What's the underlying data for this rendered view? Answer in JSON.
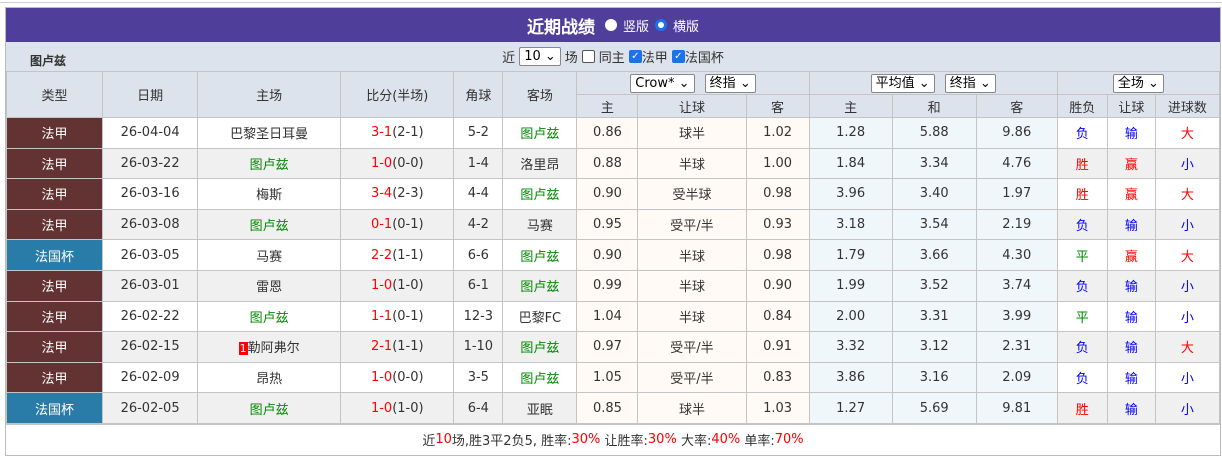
{
  "title": "近期战绩",
  "layout_options": [
    {
      "label": "竖版",
      "selected": false
    },
    {
      "label": "横版",
      "selected": true
    }
  ],
  "team": "图卢兹",
  "filter": {
    "prefix": "近",
    "count": "10",
    "suffix": "场",
    "checkboxes": [
      {
        "label": "同主",
        "checked": false
      },
      {
        "label": "法甲",
        "checked": true
      },
      {
        "label": "法国杯",
        "checked": true
      }
    ]
  },
  "headers": {
    "type": "类型",
    "date": "日期",
    "home": "主场",
    "score": "比分(半场)",
    "corner": "角球",
    "away": "客场",
    "company_select": "Crow*",
    "odds_select": "终指",
    "avg_select": "平均值",
    "avg_odds_select": "终指",
    "period_select": "全场",
    "sub": [
      "主",
      "让球",
      "客",
      "主",
      "和",
      "客",
      "胜负",
      "让球",
      "进球数"
    ]
  },
  "colors": {
    "league_fr": "#633333",
    "cup_fr": "#2a7ca8",
    "focus_team": "#008800",
    "header_bar": "#4f3f9a"
  },
  "rows": [
    {
      "type": "法甲",
      "date": "26-04-04",
      "home": "巴黎圣日耳曼",
      "score": "3-1",
      "half": "(2-1)",
      "corner": "5-2",
      "away": "图卢兹",
      "h": "0.86",
      "hc": "球半",
      "a": "1.02",
      "ah": "1.28",
      "ad": "5.88",
      "aa": "9.86",
      "wl": "负",
      "hr": "输",
      "ou": "大"
    },
    {
      "type": "法甲",
      "date": "26-03-22",
      "home": "图卢兹",
      "score": "1-0",
      "half": "(0-0)",
      "corner": "1-4",
      "away": "洛里昂",
      "h": "0.88",
      "hc": "半球",
      "a": "1.00",
      "ah": "1.84",
      "ad": "3.34",
      "aa": "4.76",
      "wl": "胜",
      "hr": "赢",
      "ou": "小"
    },
    {
      "type": "法甲",
      "date": "26-03-16",
      "home": "梅斯",
      "score": "3-4",
      "half": "(2-3)",
      "corner": "4-4",
      "away": "图卢兹",
      "h": "0.90",
      "hc": "受半球",
      "a": "0.98",
      "ah": "3.96",
      "ad": "3.40",
      "aa": "1.97",
      "wl": "胜",
      "hr": "赢",
      "ou": "大"
    },
    {
      "type": "法甲",
      "date": "26-03-08",
      "home": "图卢兹",
      "score": "0-1",
      "half": "(0-1)",
      "corner": "4-2",
      "away": "马赛",
      "h": "0.95",
      "hc": "受平/半",
      "a": "0.93",
      "ah": "3.18",
      "ad": "3.54",
      "aa": "2.19",
      "wl": "负",
      "hr": "输",
      "ou": "小"
    },
    {
      "type": "法国杯",
      "date": "26-03-05",
      "home": "马赛",
      "score": "2-2",
      "half": "(1-1)",
      "corner": "6-6",
      "away": "图卢兹",
      "h": "0.90",
      "hc": "半球",
      "a": "0.98",
      "ah": "1.79",
      "ad": "3.66",
      "aa": "4.30",
      "wl": "平",
      "hr": "赢",
      "ou": "大"
    },
    {
      "type": "法甲",
      "date": "26-03-01",
      "home": "雷恩",
      "score": "1-0",
      "half": "(1-0)",
      "corner": "6-1",
      "away": "图卢兹",
      "h": "0.99",
      "hc": "半球",
      "a": "0.90",
      "ah": "1.99",
      "ad": "3.52",
      "aa": "3.74",
      "wl": "负",
      "hr": "输",
      "ou": "小"
    },
    {
      "type": "法甲",
      "date": "26-02-22",
      "home": "图卢兹",
      "score": "1-1",
      "half": "(0-1)",
      "corner": "12-3",
      "away": "巴黎FC",
      "h": "1.04",
      "hc": "半球",
      "a": "0.84",
      "ah": "2.00",
      "ad": "3.31",
      "aa": "3.99",
      "wl": "平",
      "hr": "输",
      "ou": "小"
    },
    {
      "type": "法甲",
      "date": "26-02-15",
      "rank": "1",
      "home": "勒阿弗尔",
      "score": "2-1",
      "half": "(1-1)",
      "corner": "1-10",
      "away": "图卢兹",
      "h": "0.97",
      "hc": "受平/半",
      "a": "0.91",
      "ah": "3.32",
      "ad": "3.12",
      "aa": "2.31",
      "wl": "负",
      "hr": "输",
      "ou": "大"
    },
    {
      "type": "法甲",
      "date": "26-02-09",
      "home": "昂热",
      "score": "1-0",
      "half": "(0-0)",
      "corner": "3-5",
      "away": "图卢兹",
      "h": "1.05",
      "hc": "受平/半",
      "a": "0.83",
      "ah": "3.86",
      "ad": "3.16",
      "aa": "2.09",
      "wl": "负",
      "hr": "输",
      "ou": "小"
    },
    {
      "type": "法国杯",
      "date": "26-02-05",
      "home": "图卢兹",
      "score": "1-0",
      "half": "(1-0)",
      "corner": "6-4",
      "away": "亚眠",
      "h": "0.85",
      "hc": "球半",
      "a": "1.03",
      "ah": "1.27",
      "ad": "5.69",
      "aa": "9.81",
      "wl": "胜",
      "hr": "输",
      "ou": "小"
    }
  ],
  "summary": [
    {
      "t": "近",
      "c": ""
    },
    {
      "t": "10",
      "c": "red"
    },
    {
      "t": "场,胜3平2负5, 胜率:",
      "c": ""
    },
    {
      "t": "30%",
      "c": "red"
    },
    {
      "t": " 让胜率:",
      "c": ""
    },
    {
      "t": "30%",
      "c": "red"
    },
    {
      "t": " 大率:",
      "c": ""
    },
    {
      "t": "40%",
      "c": "red"
    },
    {
      "t": " 单率:",
      "c": ""
    },
    {
      "t": "70%",
      "c": "red"
    }
  ]
}
